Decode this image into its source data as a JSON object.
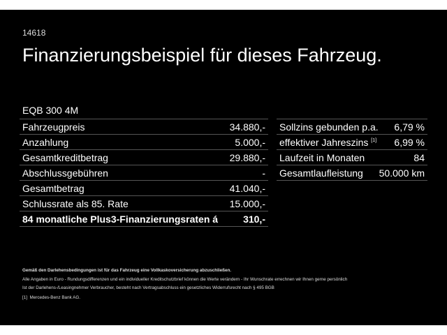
{
  "ad_id": "14618",
  "title": "Finanzierungsbeispiel für dieses Fahrzeug.",
  "model": "EQB 300 4M",
  "left_table": [
    {
      "label": "Fahrzeugpreis",
      "value": "34.880,-"
    },
    {
      "label": "Anzahlung",
      "value": "5.000,-"
    },
    {
      "label": "Gesamtkreditbetrag",
      "value": "29.880,-"
    },
    {
      "label": "Abschlussgebühren",
      "value": "-"
    },
    {
      "label": "Gesamtbetrag",
      "value": "41.040,-"
    },
    {
      "label": "Schlussrate als 85. Rate",
      "value": "15.000,-"
    },
    {
      "label": "84 monatliche Plus3-Finanzierungsraten á",
      "value": "310,-"
    }
  ],
  "right_table": [
    {
      "label": "Sollzins gebunden p.a.",
      "value": "6,79 %"
    },
    {
      "label": "effektiver Jahreszins",
      "sup": "[1]",
      "value": "6,99 %"
    },
    {
      "label": "Laufzeit in Monaten",
      "value": "84"
    },
    {
      "label": "Gesamtlaufleistung",
      "value": "50.000 km"
    }
  ],
  "notes": {
    "bold": "Gemäß den Darlehensbedingungen ist für das Fahrzeug eine Vollkaskoversicherung abzuschließen.",
    "line1": "Alle Angaben in Euro - Rundungsdifferenzen und ein individueller Kreditschutzbrief können die Werte verändern - Ihr Wunschrate errechnen wir Ihnen gerne persönlich",
    "line2": "Ist der Darlehens-/Leasingnehmer Verbraucher, besteht nach Vertragsabschluss ein gesetzliches Widerrufsrecht nach § 495 BGB",
    "footnote_mark": "[1]",
    "footnote": "Mercedes-Benz Bank AG."
  }
}
